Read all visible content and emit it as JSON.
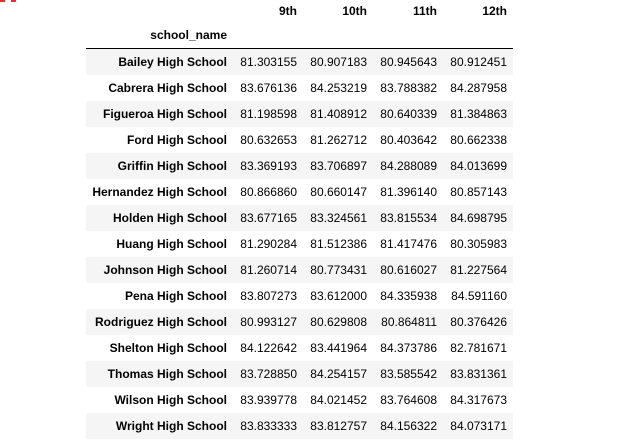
{
  "table": {
    "index_name": "school_name",
    "columns": [
      "9th",
      "10th",
      "11th",
      "12th"
    ],
    "rows": [
      {
        "school": "Bailey High School",
        "values": [
          "81.303155",
          "80.907183",
          "80.945643",
          "80.912451"
        ]
      },
      {
        "school": "Cabrera High School",
        "values": [
          "83.676136",
          "84.253219",
          "83.788382",
          "84.287958"
        ]
      },
      {
        "school": "Figueroa High School",
        "values": [
          "81.198598",
          "81.408912",
          "80.640339",
          "81.384863"
        ]
      },
      {
        "school": "Ford High School",
        "values": [
          "80.632653",
          "81.262712",
          "80.403642",
          "80.662338"
        ]
      },
      {
        "school": "Griffin High School",
        "values": [
          "83.369193",
          "83.706897",
          "84.288089",
          "84.013699"
        ]
      },
      {
        "school": "Hernandez High School",
        "values": [
          "80.866860",
          "80.660147",
          "81.396140",
          "80.857143"
        ]
      },
      {
        "school": "Holden High School",
        "values": [
          "83.677165",
          "83.324561",
          "83.815534",
          "84.698795"
        ]
      },
      {
        "school": "Huang High School",
        "values": [
          "81.290284",
          "81.512386",
          "81.417476",
          "80.305983"
        ]
      },
      {
        "school": "Johnson High School",
        "values": [
          "81.260714",
          "80.773431",
          "80.616027",
          "81.227564"
        ]
      },
      {
        "school": "Pena High School",
        "values": [
          "83.807273",
          "83.612000",
          "84.335938",
          "84.591160"
        ]
      },
      {
        "school": "Rodriguez High School",
        "values": [
          "80.993127",
          "80.629808",
          "80.864811",
          "80.376426"
        ]
      },
      {
        "school": "Shelton High School",
        "values": [
          "84.122642",
          "83.441964",
          "84.373786",
          "82.781671"
        ]
      },
      {
        "school": "Thomas High School",
        "values": [
          "83.728850",
          "84.254157",
          "83.585542",
          "83.831361"
        ]
      },
      {
        "school": "Wilson High School",
        "values": [
          "83.939778",
          "84.021452",
          "83.764608",
          "84.317673"
        ]
      },
      {
        "school": "Wright High School",
        "values": [
          "83.833333",
          "83.812757",
          "84.156322",
          "84.073171"
        ]
      }
    ]
  },
  "colors": {
    "stripe": "#f5f5f5",
    "header_rule": "#000000",
    "accent_mark": "#e0322b"
  }
}
